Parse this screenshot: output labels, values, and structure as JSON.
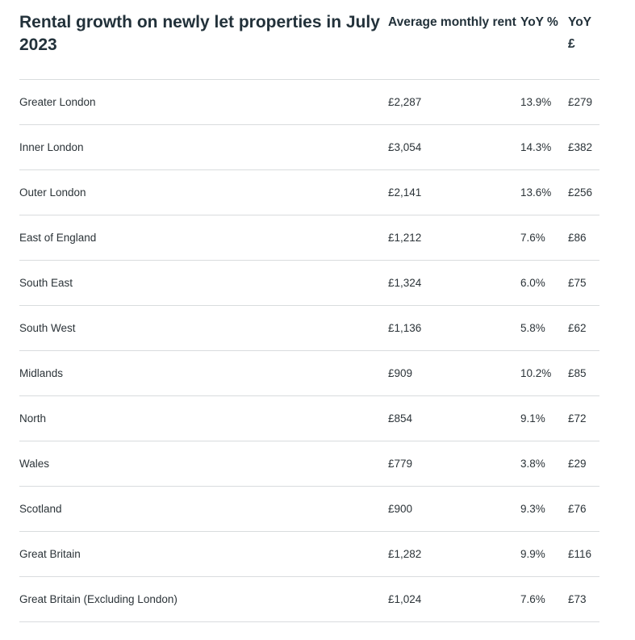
{
  "table": {
    "title": "Rental growth on newly let properties in July 2023",
    "headers": {
      "rent": "Average monthly rent",
      "yoy_pct": "YoY %",
      "yoy_gbp": "YoY £"
    },
    "rows": [
      {
        "region": "Greater London",
        "rent": "£2,287",
        "yoy_pct": "13.9%",
        "yoy_gbp": "£279"
      },
      {
        "region": "Inner London",
        "rent": "£3,054",
        "yoy_pct": "14.3%",
        "yoy_gbp": "£382"
      },
      {
        "region": "Outer London",
        "rent": "£2,141",
        "yoy_pct": "13.6%",
        "yoy_gbp": "£256"
      },
      {
        "region": "East of England",
        "rent": "£1,212",
        "yoy_pct": "7.6%",
        "yoy_gbp": "£86"
      },
      {
        "region": "South East",
        "rent": "£1,324",
        "yoy_pct": "6.0%",
        "yoy_gbp": "£75"
      },
      {
        "region": "South West",
        "rent": "£1,136",
        "yoy_pct": "5.8%",
        "yoy_gbp": "£62"
      },
      {
        "region": "Midlands",
        "rent": "£909",
        "yoy_pct": "10.2%",
        "yoy_gbp": "£85"
      },
      {
        "region": "North",
        "rent": "£854",
        "yoy_pct": "9.1%",
        "yoy_gbp": "£72"
      },
      {
        "region": "Wales",
        "rent": "£779",
        "yoy_pct": "3.8%",
        "yoy_gbp": "£29"
      },
      {
        "region": "Scotland",
        "rent": "£900",
        "yoy_pct": "9.3%",
        "yoy_gbp": "£76"
      },
      {
        "region": "Great Britain",
        "rent": "£1,282",
        "yoy_pct": "9.9%",
        "yoy_gbp": "£116"
      },
      {
        "region": "Great Britain (Excluding London)",
        "rent": "£1,024",
        "yoy_pct": "7.6%",
        "yoy_gbp": "£73"
      }
    ]
  }
}
